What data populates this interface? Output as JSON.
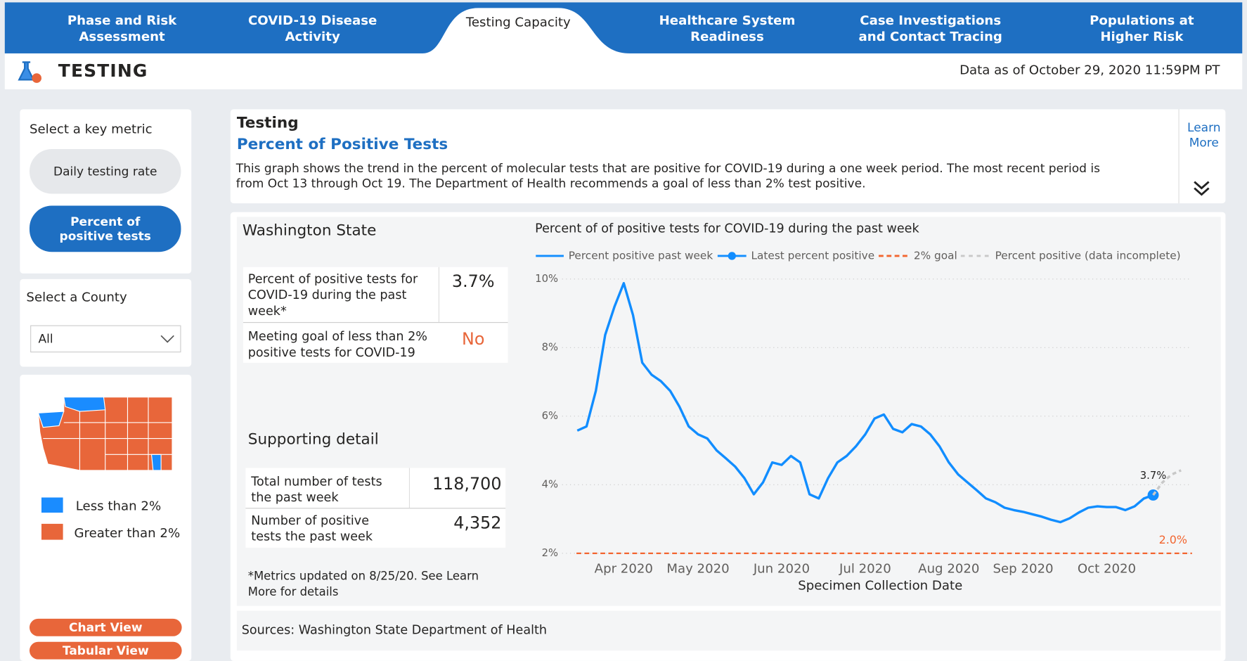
{
  "nav": {
    "tabs": [
      "Phase and Risk Assessment",
      "COVID-19 Disease Activity",
      "Testing Capacity",
      "Healthcare System Readiness",
      "Case Investigations and Contact Tracing",
      "Populations at Higher Risk"
    ]
  },
  "header": {
    "title": "TESTING",
    "data_as_of": "Data as of October 29, 2020 11:59PM PT"
  },
  "sidebar": {
    "metric_prompt": "Select a key metric",
    "metrics": [
      "Daily testing rate",
      "Percent of positive tests"
    ],
    "county_prompt": "Select a County",
    "county_selected": "All",
    "map_legend": [
      "Less than 2%",
      "Greater than 2%"
    ],
    "buttons": [
      "Chart View",
      "Tabular View"
    ]
  },
  "info": {
    "heading": "Testing",
    "subheading": "Percent of Positive Tests",
    "description": "This graph shows the trend in the percent of molecular tests that are positive for COVID-19 during a one week period. The most recent period is from Oct 13 through Oct 19. The Department of Health recommends a goal of less than 2% test positive.",
    "learn_more": "Learn More"
  },
  "summary": {
    "region": "Washington State",
    "metrics": [
      {
        "label": "Percent of positive tests for COVID-19 during the past week*",
        "value": "3.7%"
      },
      {
        "label": "Meeting goal of less than 2% positive tests for COVID-19",
        "value": "No"
      }
    ],
    "supporting_title": "Supporting detail",
    "supporting": [
      {
        "label": "Total number of tests the past week",
        "value": "118,700"
      },
      {
        "label": "Number of positive tests the past week",
        "value": "4,352"
      }
    ],
    "footnote": "*Metrics updated on 8/25/20.  See Learn More for details"
  },
  "sources": "Sources: Washington State Department of Health",
  "chart_data": {
    "type": "line",
    "title": "Percent of of positive tests for COVID-19 during the past week",
    "xlabel": "Specimen Collection Date",
    "categories": [
      null,
      null,
      null,
      null,
      null,
      "Apr 2020",
      null,
      null,
      null,
      null,
      null,
      null,
      null,
      "May 2020",
      null,
      null,
      null,
      null,
      null,
      null,
      null,
      null,
      "Jun 2020",
      null,
      null,
      null,
      null,
      null,
      null,
      null,
      null,
      "Jul 2020",
      null,
      null,
      null,
      null,
      null,
      null,
      null,
      null,
      "Aug 2020",
      null,
      null,
      null,
      null,
      null,
      null,
      null,
      "Sep 2020",
      null,
      null,
      null,
      null,
      null,
      null,
      null,
      null,
      "Oct 2020",
      null,
      null,
      null,
      null,
      null,
      null,
      null,
      null
    ],
    "ylim": [
      2,
      10
    ],
    "yticks": [
      {
        "value": 2,
        "label": "2%"
      },
      {
        "value": 4,
        "label": "4%"
      },
      {
        "value": 6,
        "label": "6%"
      },
      {
        "value": 8,
        "label": "8%"
      },
      {
        "value": 10,
        "label": "10%"
      }
    ],
    "grid": true,
    "series": [
      {
        "name": "Percent positive past week",
        "color": "#118dff",
        "values": [
          5.58,
          5.7,
          6.74,
          8.37,
          9.19,
          9.88,
          8.95,
          7.56,
          7.21,
          7.02,
          6.74,
          6.28,
          5.7,
          5.47,
          5.35,
          5,
          4.77,
          4.53,
          4.19,
          3.72,
          4.07,
          4.65,
          4.58,
          4.84,
          4.65,
          3.72,
          3.6,
          4.19,
          4.65,
          4.84,
          5.12,
          5.47,
          5.93,
          6.05,
          5.63,
          5.53,
          5.77,
          5.7,
          5.47,
          5.12,
          4.65,
          4.3,
          4.07,
          3.84,
          3.6,
          3.49,
          3.33,
          3.26,
          3.21,
          3.14,
          3.07,
          2.98,
          2.91,
          3.02,
          3.19,
          3.33,
          3.37,
          3.35,
          3.35,
          3.26,
          3.37,
          3.6,
          3.7,
          null,
          null,
          null
        ]
      },
      {
        "name": "Latest percent positive",
        "color": "#118dff",
        "values": [
          null,
          null,
          null,
          null,
          null,
          null,
          null,
          null,
          null,
          null,
          null,
          null,
          null,
          null,
          null,
          null,
          null,
          null,
          null,
          null,
          null,
          null,
          null,
          null,
          null,
          null,
          null,
          null,
          null,
          null,
          null,
          null,
          null,
          null,
          null,
          null,
          null,
          null,
          null,
          null,
          null,
          null,
          null,
          null,
          null,
          null,
          null,
          null,
          null,
          null,
          null,
          null,
          null,
          null,
          null,
          null,
          null,
          null,
          null,
          null,
          null,
          null,
          3.7,
          null,
          null,
          null
        ],
        "value_labels": [
          null,
          null,
          null,
          null,
          null,
          null,
          null,
          null,
          null,
          null,
          null,
          null,
          null,
          null,
          null,
          null,
          null,
          null,
          null,
          null,
          null,
          null,
          null,
          null,
          null,
          null,
          null,
          null,
          null,
          null,
          null,
          null,
          null,
          null,
          null,
          null,
          null,
          null,
          null,
          null,
          null,
          null,
          null,
          null,
          null,
          null,
          null,
          null,
          null,
          null,
          null,
          null,
          null,
          null,
          null,
          null,
          null,
          null,
          null,
          null,
          null,
          null,
          "3.7%",
          null,
          null,
          null
        ]
      },
      {
        "name": "2% goal",
        "color": "#f2652f",
        "value": 2,
        "value_label": "2.0%"
      },
      {
        "name": "Percent positive (data incomplete)",
        "color": "#c8c8c8",
        "values": [
          null,
          null,
          null,
          null,
          null,
          null,
          null,
          null,
          null,
          null,
          null,
          null,
          null,
          null,
          null,
          null,
          null,
          null,
          null,
          null,
          null,
          null,
          null,
          null,
          null,
          null,
          null,
          null,
          null,
          null,
          null,
          null,
          null,
          null,
          null,
          null,
          null,
          null,
          null,
          null,
          null,
          null,
          null,
          null,
          null,
          null,
          null,
          null,
          null,
          null,
          null,
          null,
          null,
          null,
          null,
          null,
          null,
          null,
          null,
          null,
          null,
          null,
          3.7,
          4.07,
          4.3,
          4.42
        ]
      }
    ]
  }
}
